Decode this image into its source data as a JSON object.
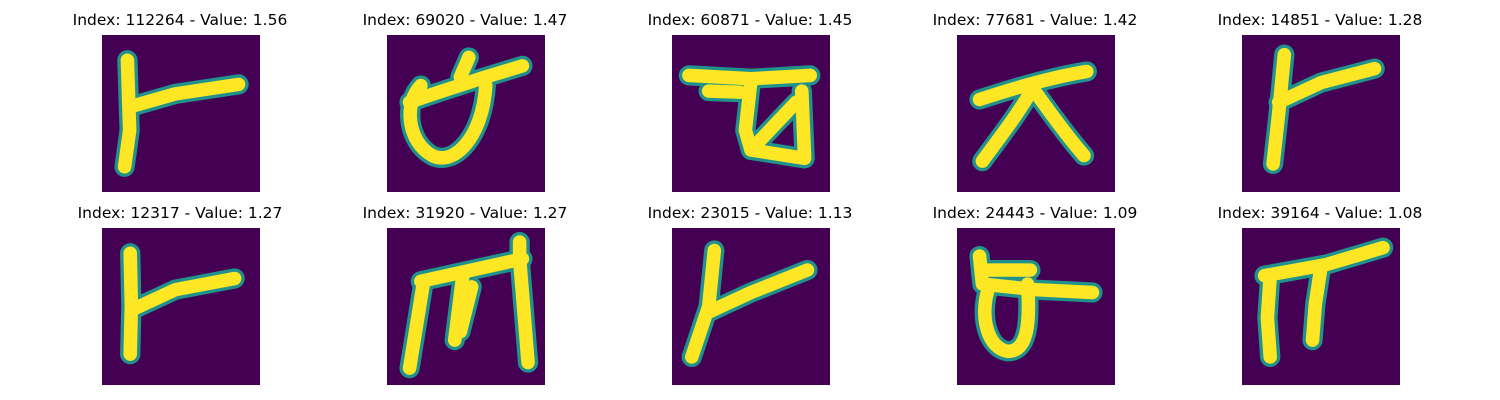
{
  "colors": {
    "background": "#440154",
    "stroke_core": "#fde725",
    "stroke_edge": "#21918c"
  },
  "panels": [
    {
      "title": "Index: 112264 - Value: 1.56"
    },
    {
      "title": "Index: 69020 - Value: 1.47"
    },
    {
      "title": "Index: 60871 - Value: 1.45"
    },
    {
      "title": "Index: 77681 - Value: 1.42"
    },
    {
      "title": "Index: 14851 - Value: 1.28"
    },
    {
      "title": "Index: 12317 - Value: 1.27"
    },
    {
      "title": "Index: 31920 - Value: 1.27"
    },
    {
      "title": "Index: 23015 - Value: 1.13"
    },
    {
      "title": "Index: 24443 - Value: 1.09"
    },
    {
      "title": "Index: 39164 - Value: 1.08"
    }
  ]
}
